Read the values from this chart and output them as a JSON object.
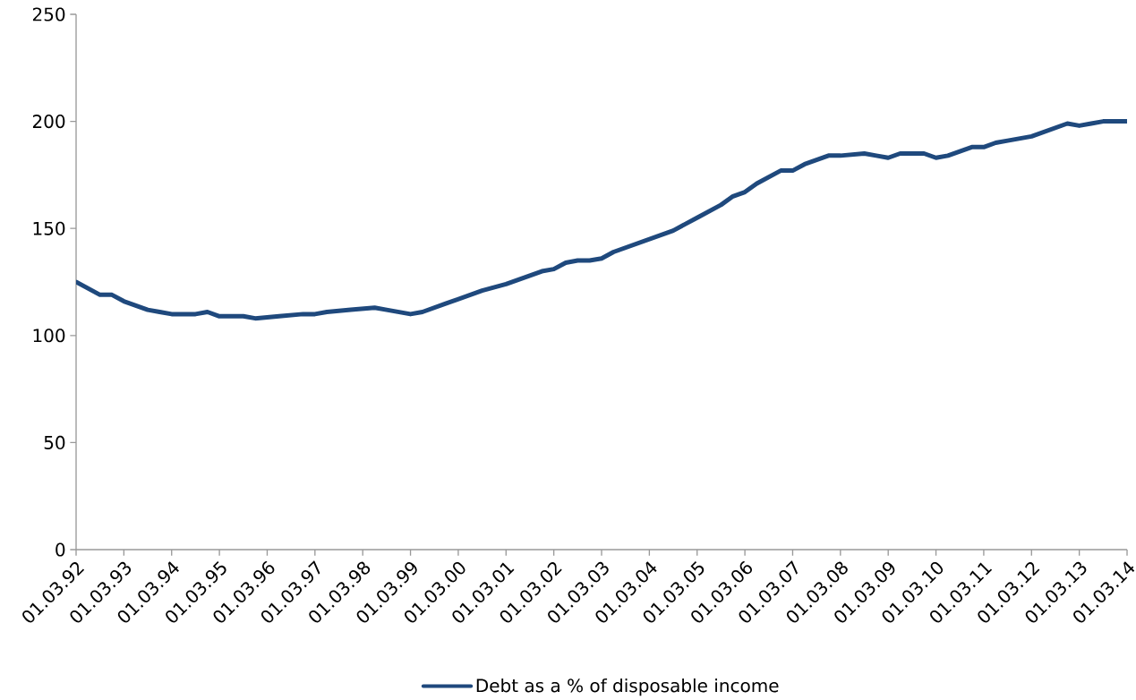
{
  "chart_data": {
    "type": "line",
    "x": [
      "1992-03-01",
      "1992-09-01",
      "1992-12-01",
      "1993-03-01",
      "1993-09-01",
      "1993-12-01",
      "1994-03-01",
      "1994-09-01",
      "1994-12-01",
      "1995-03-01",
      "1995-09-01",
      "1995-12-01",
      "1996-06-01",
      "1996-12-01",
      "1997-03-01",
      "1997-06-01",
      "1997-12-01",
      "1998-06-01",
      "1998-09-01",
      "1999-03-01",
      "1999-06-01",
      "1999-12-01",
      "2000-03-01",
      "2000-06-01",
      "2000-09-01",
      "2001-03-01",
      "2001-06-01",
      "2001-12-01",
      "2002-03-01",
      "2002-06-01",
      "2002-09-01",
      "2002-12-01",
      "2003-03-01",
      "2003-06-01",
      "2003-09-01",
      "2004-03-01",
      "2004-06-01",
      "2004-09-01",
      "2004-12-01",
      "2005-03-01",
      "2005-09-01",
      "2005-12-01",
      "2006-03-01",
      "2006-06-01",
      "2006-09-01",
      "2006-12-01",
      "2007-03-01",
      "2007-06-01",
      "2007-09-01",
      "2007-12-01",
      "2008-03-01",
      "2008-09-01",
      "2008-12-01",
      "2009-03-01",
      "2009-06-01",
      "2009-12-01",
      "2010-03-01",
      "2010-06-01",
      "2010-09-01",
      "2010-12-01",
      "2011-03-01",
      "2011-06-01",
      "2011-09-01",
      "2012-03-01",
      "2012-06-01",
      "2012-12-01",
      "2013-03-01",
      "2013-06-01",
      "2013-09-01",
      "2013-12-01",
      "2014-03-01"
    ],
    "series": [
      {
        "name": "Debt as a % of disposable income",
        "color": "#1f497d",
        "values": [
          125,
          119,
          119,
          116,
          112,
          111,
          110,
          110,
          111,
          109,
          109,
          108,
          109,
          110,
          110,
          111,
          112,
          113,
          112,
          110,
          111,
          115,
          117,
          119,
          121,
          124,
          126,
          130,
          131,
          134,
          135,
          135,
          136,
          139,
          141,
          145,
          147,
          149,
          152,
          155,
          161,
          165,
          167,
          171,
          174,
          177,
          177,
          180,
          182,
          184,
          184,
          185,
          184,
          183,
          185,
          185,
          183,
          184,
          186,
          188,
          188,
          190,
          191,
          193,
          195,
          199,
          198,
          199,
          200,
          200,
          200
        ]
      }
    ],
    "xlim": [
      "1992-03-01",
      "2014-03-01"
    ],
    "xticks": [
      {
        "value": "1992-03-01",
        "label": "01.03.92"
      },
      {
        "value": "1993-03-01",
        "label": "01.03.93"
      },
      {
        "value": "1994-03-01",
        "label": "01.03.94"
      },
      {
        "value": "1995-03-01",
        "label": "01.03.95"
      },
      {
        "value": "1996-03-01",
        "label": "01.03.96"
      },
      {
        "value": "1997-03-01",
        "label": "01.03.97"
      },
      {
        "value": "1998-03-01",
        "label": "01.03.98"
      },
      {
        "value": "1999-03-01",
        "label": "01.03.99"
      },
      {
        "value": "2000-03-01",
        "label": "01.03.00"
      },
      {
        "value": "2001-03-01",
        "label": "01.03.01"
      },
      {
        "value": "2002-03-01",
        "label": "01.03.02"
      },
      {
        "value": "2003-03-01",
        "label": "01.03.03"
      },
      {
        "value": "2004-03-01",
        "label": "01.03.04"
      },
      {
        "value": "2005-03-01",
        "label": "01.03.05"
      },
      {
        "value": "2006-03-01",
        "label": "01.03.06"
      },
      {
        "value": "2007-03-01",
        "label": "01.03.07"
      },
      {
        "value": "2008-03-01",
        "label": "01.03.08"
      },
      {
        "value": "2009-03-01",
        "label": "01.03.09"
      },
      {
        "value": "2010-03-01",
        "label": "01.03.10"
      },
      {
        "value": "2011-03-01",
        "label": "01.03.11"
      },
      {
        "value": "2012-03-01",
        "label": "01.03.12"
      },
      {
        "value": "2013-03-01",
        "label": "01.03.13"
      },
      {
        "value": "2014-03-01",
        "label": "01.03.14"
      }
    ],
    "ylim": [
      0,
      250
    ],
    "yticks": [
      0,
      50,
      100,
      150,
      200,
      250
    ],
    "legend": "bottom",
    "grid": false,
    "marker": "none",
    "line_style": "solid"
  }
}
